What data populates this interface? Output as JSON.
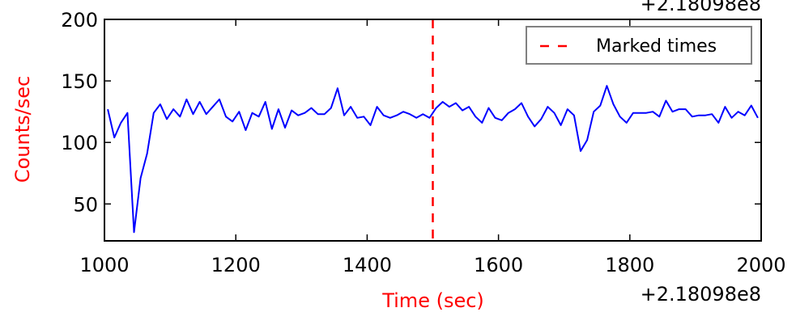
{
  "chart_data": {
    "type": "line",
    "xlabel": "Time (sec)",
    "ylabel": "Counts/sec",
    "x_offset_text_top": "+2.18098e8",
    "x_offset_text_bottom": "+2.18098e8",
    "xlim": [
      1000,
      2000
    ],
    "ylim": [
      20,
      200
    ],
    "xticks": [
      1000,
      1200,
      1400,
      1600,
      1800,
      2000
    ],
    "yticks": [
      50,
      100,
      150,
      200
    ],
    "grid": false,
    "legend_position": "top-right",
    "colors": {
      "series": "#0000ff",
      "marker": "#ff0000",
      "axis_label": "#ff0000"
    },
    "markers": [
      {
        "name": "Marked times",
        "x": 1500,
        "style": "dashed"
      }
    ],
    "series": [
      {
        "x": [
          1005,
          1015,
          1025,
          1035,
          1045,
          1055,
          1065,
          1075,
          1085,
          1095,
          1105,
          1115,
          1125,
          1135,
          1145,
          1155,
          1165,
          1175,
          1185,
          1195,
          1205,
          1215,
          1225,
          1235,
          1245,
          1255,
          1265,
          1275,
          1285,
          1295,
          1305,
          1315,
          1325,
          1335,
          1345,
          1355,
          1365,
          1375,
          1385,
          1395,
          1405,
          1415,
          1425,
          1435,
          1445,
          1455,
          1465,
          1475,
          1485,
          1495,
          1505,
          1515,
          1525,
          1535,
          1545,
          1555,
          1565,
          1575,
          1585,
          1595,
          1605,
          1615,
          1625,
          1635,
          1645,
          1655,
          1665,
          1675,
          1685,
          1695,
          1705,
          1715,
          1725,
          1735,
          1745,
          1755,
          1765,
          1775,
          1785,
          1795,
          1805,
          1815,
          1825,
          1835,
          1845,
          1855,
          1865,
          1875,
          1885,
          1895,
          1905,
          1915,
          1925,
          1935,
          1945,
          1955,
          1965,
          1975,
          1985,
          1995
        ],
        "values": [
          127,
          104,
          116,
          124,
          27,
          71,
          91,
          124,
          131,
          119,
          127,
          121,
          135,
          123,
          133,
          123,
          129,
          135,
          121,
          117,
          125,
          110,
          124,
          121,
          133,
          111,
          127,
          112,
          126,
          122,
          124,
          128,
          123,
          123,
          128,
          144,
          122,
          129,
          120,
          121,
          114,
          129,
          122,
          120,
          122,
          125,
          123,
          120,
          123,
          120,
          128,
          133,
          129,
          132,
          126,
          129,
          121,
          116,
          128,
          120,
          118,
          124,
          127,
          132,
          121,
          113,
          119,
          129,
          124,
          114,
          127,
          122,
          93,
          102,
          125,
          130,
          146,
          131,
          121,
          116,
          124,
          124,
          124,
          125,
          121,
          134,
          125,
          127,
          127,
          121,
          122,
          122,
          123,
          116,
          129,
          120,
          125,
          122,
          130,
          120
        ]
      }
    ]
  }
}
